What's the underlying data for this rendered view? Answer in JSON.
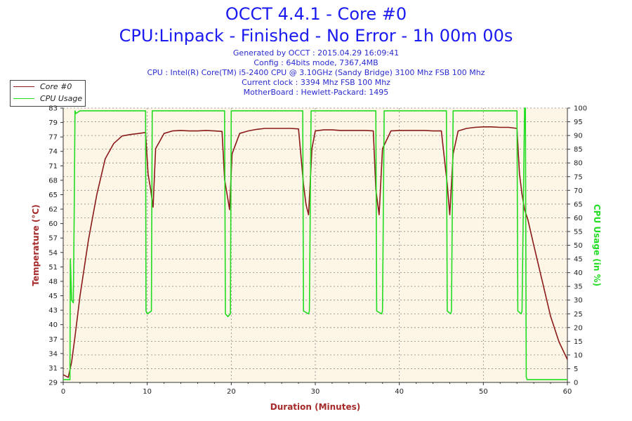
{
  "header": {
    "title": "OCCT 4.4.1 - Core #0",
    "subtitle": "CPU:Linpack - Finished - No Error - 1h 00m 00s",
    "info_lines": [
      "Generated by OCCT : 2015.04.29 16:09:41",
      "Config : 64bits mode, 7367,4MB",
      "CPU : Intel(R) Core(TM) i5-2400 CPU @ 3.10GHz (Sandy Bridge) 3100 Mhz FSB 100 Mhz",
      "Current clock : 3394 Mhz FSB 100 Mhz",
      "MotherBoard : Hewlett-Packard: 1495"
    ]
  },
  "legend": {
    "items": [
      {
        "label": "Core #0",
        "color": "#8b1a1a"
      },
      {
        "label": "CPU Usage",
        "color": "#22dd22"
      }
    ]
  },
  "colors": {
    "plot_bg": "#fdf5e6",
    "temp": "#8b1a1a",
    "usage": "#22dd22",
    "axis_left_label": "#a52a2a",
    "axis_right_label": "#22dd22",
    "grid": "#888888"
  },
  "chart_data": {
    "type": "line",
    "xlabel": "Duration (Minutes)",
    "ylabel_left": "Temperature (°C)",
    "ylabel_right": "CPU Usage (in %)",
    "xlim": [
      0,
      60
    ],
    "ylim_left": [
      29,
      83
    ],
    "ylim_right": [
      0,
      100
    ],
    "x_ticks": [
      0,
      10,
      20,
      30,
      40,
      50,
      60
    ],
    "y_ticks_left": [
      29,
      31,
      34,
      37,
      40,
      43,
      45,
      48,
      51,
      54,
      57,
      60,
      62,
      65,
      68,
      71,
      74,
      77,
      79,
      83
    ],
    "y_ticks_left_labels": [
      "29",
      "31",
      "34",
      "37",
      "40",
      "43",
      "45",
      "48",
      "51",
      "54",
      "57",
      "60",
      "62",
      "65",
      "68",
      "71",
      "74",
      "77",
      "79",
      "83"
    ],
    "y_ticks_right": [
      0,
      5,
      10,
      15,
      20,
      25,
      30,
      35,
      40,
      45,
      50,
      55,
      60,
      65,
      70,
      75,
      80,
      85,
      90,
      95,
      100
    ],
    "grid": true,
    "legend_position": "top-left",
    "series": [
      {
        "name": "Core #0",
        "axis": "left",
        "x": [
          0,
          0.6,
          1.0,
          1.4,
          2.0,
          3.0,
          4.0,
          5.0,
          6.0,
          7.0,
          8.0,
          9.0,
          9.8,
          10.1,
          10.4,
          10.7,
          11.0,
          12.0,
          13.0,
          14.0,
          15.0,
          16.0,
          17.0,
          18.0,
          18.9,
          19.2,
          19.5,
          19.8,
          20.1,
          21.0,
          22.0,
          23.0,
          24.0,
          25.0,
          26.0,
          27.0,
          28.0,
          28.6,
          28.9,
          29.2,
          29.6,
          30.0,
          31.0,
          32.0,
          33.0,
          34.0,
          35.0,
          36.0,
          36.9,
          37.2,
          37.6,
          38.0,
          39.0,
          40.0,
          41.0,
          42.0,
          43.0,
          44.0,
          45.0,
          45.7,
          46.0,
          46.4,
          47.0,
          48.0,
          49.0,
          50.0,
          51.0,
          52.0,
          53.0,
          54.0,
          54.3,
          54.6,
          54.9,
          55.3,
          56.0,
          57.0,
          58.0,
          59.0,
          60.0
        ],
        "y": [
          30.5,
          30.0,
          33.0,
          38.0,
          46.0,
          57.0,
          66.0,
          73.0,
          76.0,
          77.5,
          77.8,
          78.0,
          78.2,
          70.0,
          67.0,
          63.5,
          75.0,
          78.0,
          78.5,
          78.6,
          78.5,
          78.5,
          78.6,
          78.5,
          78.4,
          69.0,
          66.0,
          63.0,
          74.0,
          78.0,
          78.5,
          78.8,
          79.0,
          79.0,
          79.0,
          79.0,
          78.9,
          68.0,
          64.0,
          62.0,
          75.0,
          78.5,
          78.7,
          78.7,
          78.6,
          78.6,
          78.6,
          78.6,
          78.5,
          67.0,
          62.0,
          75.0,
          78.5,
          78.6,
          78.6,
          78.6,
          78.6,
          78.5,
          78.5,
          68.0,
          62.0,
          74.0,
          78.5,
          79.0,
          79.2,
          79.3,
          79.3,
          79.2,
          79.2,
          79.0,
          70.0,
          66.0,
          63.0,
          61.0,
          56.0,
          49.0,
          42.0,
          37.0,
          33.5
        ]
      },
      {
        "name": "CPU Usage",
        "axis": "right",
        "x": [
          0,
          0.8,
          0.85,
          1.0,
          1.2,
          1.3,
          1.4,
          1.5,
          2.0,
          9.4,
          9.8,
          9.85,
          10.0,
          10.5,
          10.6,
          10.7,
          11.0,
          18.7,
          19.2,
          19.3,
          19.6,
          19.9,
          20.0,
          20.3,
          28.0,
          28.5,
          28.6,
          29.2,
          29.3,
          29.5,
          37.0,
          37.2,
          37.3,
          37.9,
          38.0,
          38.2,
          45.4,
          45.6,
          45.7,
          46.1,
          46.2,
          46.4,
          53.8,
          54.0,
          54.1,
          54.5,
          54.6,
          54.9,
          55.0,
          55.1,
          55.2,
          60.0
        ],
        "y": [
          1,
          1,
          45,
          30,
          29,
          60,
          99,
          98,
          99,
          99,
          99,
          26,
          25,
          26,
          99,
          99,
          99,
          99,
          99,
          25,
          24,
          25,
          99,
          99,
          99,
          99,
          26,
          25,
          26,
          99,
          99,
          99,
          26,
          25,
          26,
          99,
          99,
          99,
          26,
          25,
          26,
          99,
          99,
          99,
          26,
          25,
          26,
          100,
          100,
          2,
          1,
          1
        ]
      }
    ]
  }
}
